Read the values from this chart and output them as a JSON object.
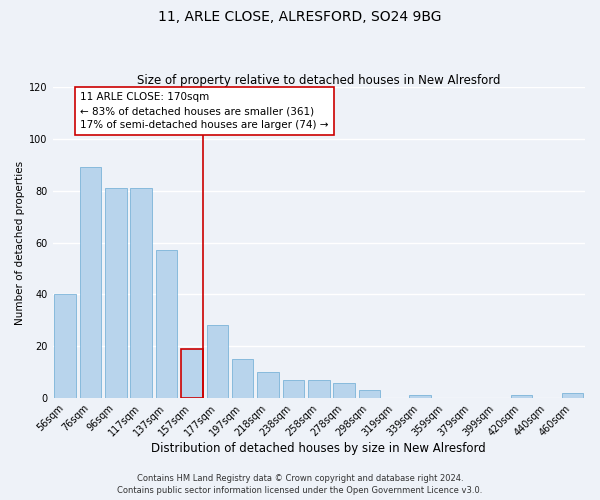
{
  "title": "11, ARLE CLOSE, ALRESFORD, SO24 9BG",
  "subtitle": "Size of property relative to detached houses in New Alresford",
  "xlabel": "Distribution of detached houses by size in New Alresford",
  "ylabel": "Number of detached properties",
  "categories": [
    "56sqm",
    "76sqm",
    "96sqm",
    "117sqm",
    "137sqm",
    "157sqm",
    "177sqm",
    "197sqm",
    "218sqm",
    "238sqm",
    "258sqm",
    "278sqm",
    "298sqm",
    "319sqm",
    "339sqm",
    "359sqm",
    "379sqm",
    "399sqm",
    "420sqm",
    "440sqm",
    "460sqm"
  ],
  "values": [
    40,
    89,
    81,
    81,
    57,
    19,
    28,
    15,
    10,
    7,
    7,
    6,
    3,
    0,
    1,
    0,
    0,
    0,
    1,
    0,
    2
  ],
  "bar_color": "#b8d4ec",
  "bar_edge_color": "#6aaad4",
  "highlight_bar_index": 5,
  "highlight_edge_color": "#cc0000",
  "highlight_line_color": "#cc0000",
  "annotation_line1": "11 ARLE CLOSE: 170sqm",
  "annotation_line2": "← 83% of detached houses are smaller (361)",
  "annotation_line3": "17% of semi-detached houses are larger (74) →",
  "annotation_box_color": "#ffffff",
  "annotation_box_edge_color": "#cc0000",
  "ylim": [
    0,
    120
  ],
  "yticks": [
    0,
    20,
    40,
    60,
    80,
    100,
    120
  ],
  "footer_line1": "Contains HM Land Registry data © Crown copyright and database right 2024.",
  "footer_line2": "Contains public sector information licensed under the Open Government Licence v3.0.",
  "background_color": "#eef2f8",
  "plot_background_color": "#eef2f8",
  "grid_color": "#ffffff",
  "title_fontsize": 10,
  "subtitle_fontsize": 8.5,
  "xlabel_fontsize": 8.5,
  "ylabel_fontsize": 7.5,
  "tick_fontsize": 7,
  "annotation_fontsize": 7.5,
  "footer_fontsize": 6
}
